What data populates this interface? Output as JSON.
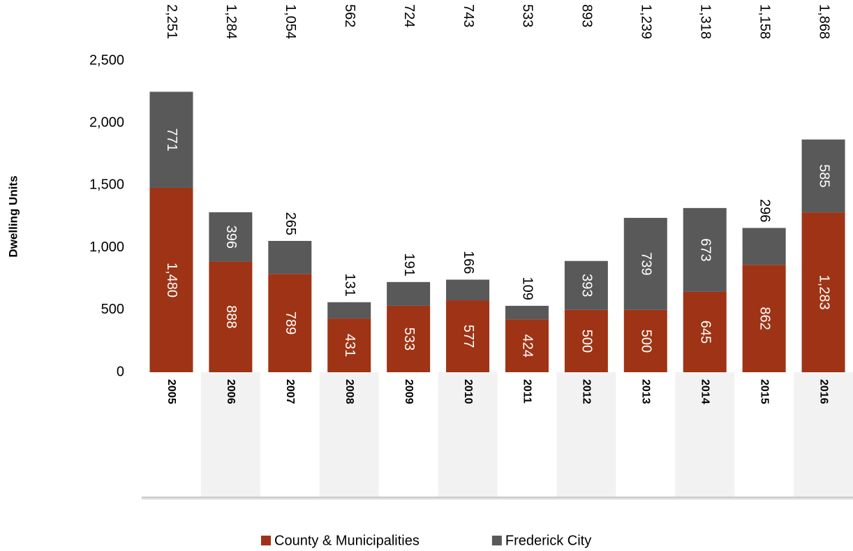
{
  "chart_data": {
    "type": "stacked_bar",
    "y_axis_label": "Dwelling Units",
    "categories": [
      "2005",
      "2006",
      "2007",
      "2008",
      "2009",
      "2010",
      "2011",
      "2012",
      "2013",
      "2014",
      "2015",
      "2016"
    ],
    "series": [
      {
        "name": "County & Municipalities",
        "color": "#9e3415",
        "values": [
          1480,
          888,
          789,
          431,
          533,
          577,
          424,
          500,
          500,
          645,
          862,
          1283
        ],
        "value_labels": [
          "1,480",
          "888",
          "789",
          "431",
          "533",
          "577",
          "424",
          "500",
          "500",
          "645",
          "862",
          "1,283"
        ]
      },
      {
        "name": "Frederick City",
        "color": "#595959",
        "values": [
          771,
          396,
          265,
          131,
          191,
          166,
          109,
          393,
          739,
          673,
          296,
          585
        ],
        "value_labels": [
          "771",
          "396",
          "265",
          "131",
          "191",
          "166",
          "109",
          "393",
          "739",
          "673",
          "296",
          "585"
        ]
      }
    ],
    "totals": [
      2251,
      1284,
      1054,
      562,
      724,
      743,
      533,
      893,
      1239,
      1318,
      1158,
      1868
    ],
    "totals_labels": [
      "2,251",
      "1,284",
      "1,054",
      "562",
      "724",
      "743",
      "533",
      "893",
      "1,239",
      "1,318",
      "1,158",
      "1,868"
    ],
    "ylim": [
      0,
      2500
    ],
    "yticks": [
      0,
      {
        "value": 500,
        "label": "500"
      },
      {
        "value": 1000,
        "label": "1,000"
      },
      {
        "value": 1500,
        "label": "1,500"
      },
      {
        "value": 2000,
        "label": "2,000"
      },
      {
        "value": 2500,
        "label": "2,500"
      }
    ],
    "legend": "bottom"
  }
}
